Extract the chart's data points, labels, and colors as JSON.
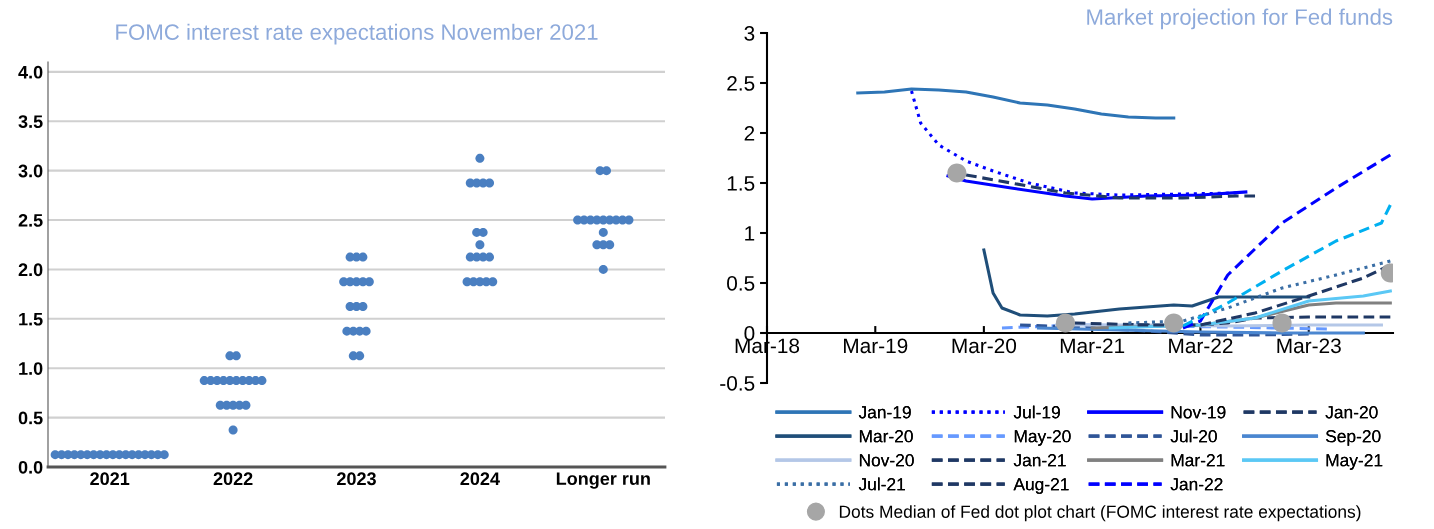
{
  "chart_data": [
    {
      "type": "scatter",
      "title": "FOMC interest rate expectations November 2021",
      "categories": [
        "2021",
        "2022",
        "2023",
        "2024",
        "Longer run"
      ],
      "ylim": [
        0,
        4.1
      ],
      "yticks": [
        {
          "value": 0,
          "label": "0.0"
        },
        {
          "value": 0.5,
          "label": "0.5"
        },
        {
          "value": 1,
          "label": "1.0"
        },
        {
          "value": 1.5,
          "label": "1.5"
        },
        {
          "value": 2,
          "label": "2.0"
        },
        {
          "value": 2.5,
          "label": "2.5"
        },
        {
          "value": 3,
          "label": "3.0"
        },
        {
          "value": 3.5,
          "label": "3.5"
        },
        {
          "value": 4,
          "label": "4.0"
        }
      ],
      "grid": "y",
      "marker": "circle",
      "series": [
        {
          "color": "#4a7fc1",
          "values": [
            0.125,
            1.125,
            2.125,
            3.125,
            3.0
          ]
        },
        {
          "color": "#4a7fc1",
          "values": [
            0.125,
            1.125,
            2.125,
            2.875,
            3.0
          ]
        },
        {
          "color": "#4a7fc1",
          "values": [
            0.125,
            0.875,
            2.125,
            2.875,
            2.5
          ]
        },
        {
          "color": "#4a7fc1",
          "values": [
            0.125,
            0.875,
            1.875,
            2.875,
            2.5
          ]
        },
        {
          "color": "#4a7fc1",
          "values": [
            0.125,
            0.875,
            1.875,
            2.875,
            2.5
          ]
        },
        {
          "color": "#4a7fc1",
          "values": [
            0.125,
            0.875,
            1.875,
            2.375,
            2.5
          ]
        },
        {
          "color": "#4a7fc1",
          "values": [
            0.125,
            0.875,
            1.875,
            2.375,
            2.5
          ]
        },
        {
          "color": "#4a7fc1",
          "values": [
            0.125,
            0.875,
            1.875,
            2.25,
            2.5
          ]
        },
        {
          "color": "#4a7fc1",
          "values": [
            0.125,
            0.875,
            1.625,
            2.125,
            2.5
          ]
        },
        {
          "color": "#4a7fc1",
          "values": [
            0.125,
            0.875,
            1.625,
            2.125,
            2.5
          ]
        },
        {
          "color": "#4a7fc1",
          "values": [
            0.125,
            0.875,
            1.625,
            2.125,
            2.5
          ]
        },
        {
          "color": "#4a7fc1",
          "values": [
            0.125,
            0.875,
            1.375,
            2.125,
            2.375
          ]
        },
        {
          "color": "#4a7fc1",
          "values": [
            0.125,
            0.625,
            1.375,
            1.875,
            2.25
          ]
        },
        {
          "color": "#4a7fc1",
          "values": [
            0.125,
            0.625,
            1.375,
            1.875,
            2.25
          ]
        },
        {
          "color": "#4a7fc1",
          "values": [
            0.125,
            0.625,
            1.375,
            1.875,
            2.25
          ]
        },
        {
          "color": "#4a7fc1",
          "values": [
            0.125,
            0.625,
            1.125,
            1.875,
            2.0
          ]
        },
        {
          "color": "#4a7fc1",
          "values": [
            0.125,
            0.625,
            1.125,
            1.875,
            null
          ]
        },
        {
          "color": "#4a7fc1",
          "values": [
            0.125,
            0.375,
            null,
            null,
            null
          ]
        }
      ]
    },
    {
      "type": "line",
      "title": "Market projection for Fed funds",
      "xlim": [
        "2018-03-01",
        "2023-12-10"
      ],
      "xticks": [
        {
          "value": "2018-03-01",
          "label": "Mar-18"
        },
        {
          "value": "2019-03-01",
          "label": "Mar-19"
        },
        {
          "value": "2020-03-01",
          "label": "Mar-20"
        },
        {
          "value": "2021-03-01",
          "label": "Mar-21"
        },
        {
          "value": "2022-03-01",
          "label": "Mar-22"
        },
        {
          "value": "2023-03-01",
          "label": "Mar-23"
        }
      ],
      "ylim": [
        -0.5,
        3
      ],
      "yticks": [
        -0.5,
        0,
        0.5,
        1,
        1.5,
        2,
        2.5,
        3
      ],
      "legend": "bottom",
      "series": [
        {
          "name": "Jan-19",
          "color": "#2e75b6",
          "line_style": "solid",
          "x": [
            "2019-01",
            "2019-04",
            "2019-07",
            "2019-10",
            "2020-01",
            "2020-04",
            "2020-07",
            "2020-10",
            "2021-01",
            "2021-04",
            "2021-07",
            "2021-10",
            "2021-12"
          ],
          "values": [
            2.4,
            2.41,
            2.44,
            2.43,
            2.41,
            2.36,
            2.3,
            2.28,
            2.24,
            2.19,
            2.16,
            2.15,
            2.15
          ]
        },
        {
          "name": "Jul-19",
          "color": "#0000ff",
          "line_style": "dotted",
          "x": [
            "2019-07",
            "2019-08",
            "2019-10",
            "2020-01",
            "2020-04",
            "2020-08",
            "2021-01",
            "2021-06",
            "2022-01",
            "2022-07"
          ],
          "values": [
            2.42,
            2.1,
            1.88,
            1.72,
            1.62,
            1.5,
            1.4,
            1.38,
            1.39,
            1.4
          ]
        },
        {
          "name": "Nov-19",
          "color": "#0000ff",
          "line_style": "solid",
          "x": [
            "2019-11",
            "2020-01",
            "2020-06",
            "2020-12",
            "2021-03",
            "2021-09",
            "2022-03",
            "2022-08"
          ],
          "values": [
            1.57,
            1.52,
            1.45,
            1.37,
            1.34,
            1.37,
            1.38,
            1.41
          ]
        },
        {
          "name": "Jan-20",
          "color": "#1f3864",
          "line_style": "dashed",
          "x": [
            "2020-01",
            "2020-06",
            "2020-12",
            "2021-06",
            "2022-01",
            "2022-07",
            "2022-09"
          ],
          "values": [
            1.58,
            1.5,
            1.4,
            1.35,
            1.35,
            1.37,
            1.37
          ]
        },
        {
          "name": "Mar-20",
          "color": "#1f4e79",
          "line_style": "solid",
          "x": [
            "2020-03",
            "2020-04",
            "2020-05",
            "2020-07",
            "2020-10",
            "2021-01",
            "2021-06",
            "2021-12",
            "2022-02",
            "2022-05",
            "2022-12",
            "2023-03"
          ],
          "values": [
            0.83,
            0.4,
            0.25,
            0.18,
            0.17,
            0.19,
            0.24,
            0.28,
            0.27,
            0.36,
            0.36,
            0.36
          ]
        },
        {
          "name": "May-20",
          "color": "#6699ff",
          "line_style": "dashed",
          "x": [
            "2020-05",
            "2021-01",
            "2021-09",
            "2022-06",
            "2023-05"
          ],
          "values": [
            0.05,
            0.08,
            0.07,
            0.06,
            0.04
          ]
        },
        {
          "name": "Jul-20",
          "color": "#2f5597",
          "line_style": "dashed",
          "x": [
            "2020-07",
            "2021-01",
            "2021-09",
            "2022-03",
            "2022-09",
            "2023-03"
          ],
          "values": [
            0.08,
            0.06,
            0.02,
            -0.02,
            -0.02,
            -0.01
          ]
        },
        {
          "name": "Sep-20",
          "color": "#4a86d0",
          "line_style": "solid",
          "x": [
            "2020-09",
            "2021-06",
            "2022-03",
            "2022-12",
            "2023-09"
          ],
          "values": [
            0.05,
            0.03,
            0.01,
            0.0,
            0.0
          ]
        },
        {
          "name": "Nov-20",
          "color": "#b4c7e7",
          "line_style": "solid",
          "x": [
            "2020-11",
            "2021-09",
            "2022-06",
            "2023-03",
            "2023-11"
          ],
          "values": [
            0.08,
            0.08,
            0.07,
            0.08,
            0.08
          ]
        },
        {
          "name": "Jan-21",
          "color": "#1f3864",
          "line_style": "dashed",
          "x": [
            "2021-01",
            "2022-01",
            "2022-06",
            "2022-09",
            "2023-03",
            "2023-12"
          ],
          "values": [
            0.1,
            0.07,
            0.1,
            0.15,
            0.16,
            0.16
          ]
        },
        {
          "name": "Mar-21",
          "color": "#808080",
          "line_style": "solid",
          "x": [
            "2021-03",
            "2022-03",
            "2022-09",
            "2023-03",
            "2023-06",
            "2023-12"
          ],
          "values": [
            0.05,
            0.08,
            0.15,
            0.28,
            0.3,
            0.3
          ]
        },
        {
          "name": "May-21",
          "color": "#5bc8f5",
          "line_style": "solid",
          "x": [
            "2021-05",
            "2022-03",
            "2022-09",
            "2023-03",
            "2023-09",
            "2023-12"
          ],
          "values": [
            0.05,
            0.08,
            0.15,
            0.32,
            0.37,
            0.42
          ]
        },
        {
          "name": "Jul-21",
          "color": "#3a6ea5",
          "line_style": "dotted",
          "x": [
            "2021-07",
            "2022-01",
            "2022-06",
            "2022-12",
            "2023-06",
            "2023-12"
          ],
          "values": [
            0.1,
            0.12,
            0.25,
            0.45,
            0.58,
            0.72
          ]
        },
        {
          "name": "Aug-21",
          "color": "#1f3864",
          "line_style": "dashed",
          "x": [
            "2021-08",
            "2022-03",
            "2022-09",
            "2023-03",
            "2023-09",
            "2023-12"
          ],
          "values": [
            0.08,
            0.08,
            0.2,
            0.37,
            0.55,
            0.68
          ]
        },
        {
          "name": "Jan-22",
          "color": "#0000ff",
          "line_style": "dashed",
          "x": [
            "2022-01",
            "2022-03",
            "2022-06",
            "2022-12",
            "2023-06",
            "2023-12"
          ],
          "values": [
            0.05,
            0.12,
            0.58,
            1.1,
            1.45,
            1.78
          ]
        },
        {
          "color": "#00b0f0",
          "line_style": "dashed",
          "x": [
            "2022-01",
            "2022-06",
            "2022-12",
            "2023-06",
            "2023-11",
            "2023-12"
          ],
          "values": [
            0.07,
            0.3,
            0.62,
            0.92,
            1.1,
            1.28
          ]
        },
        {
          "name": "Dots Median of Fed dot plot chart (FOMC interest rate expectations)",
          "type": "scatter",
          "marker": "circle",
          "color": "#a6a6a6",
          "x": [
            "2019-12",
            "2020-12",
            "2021-12",
            "2022-12",
            "2023-12"
          ],
          "values": [
            1.6,
            0.1,
            0.1,
            0.1,
            0.6
          ]
        }
      ]
    }
  ]
}
